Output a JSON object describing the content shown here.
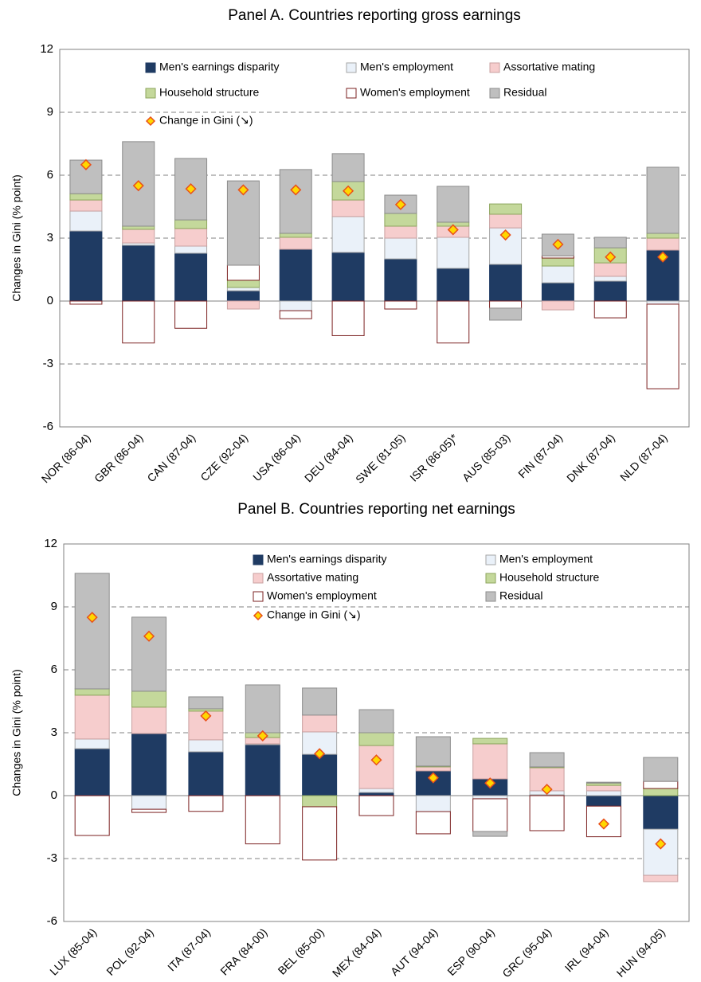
{
  "chart_data": [
    {
      "type": "bar",
      "stacked": true,
      "title": "Panel A. Countries reporting gross earnings",
      "y_label": "Changes in Gini (% point)",
      "categories": [
        "NOR (86-04)",
        "GBR (86-04)",
        "CAN (87-04)",
        "CZE (92-04)",
        "USA (86-04)",
        "DEU (84-04)",
        "SWE (81-05)",
        "ISR (86-05)*",
        "AUS (85-03)",
        "FIN (87-04)",
        "DNK (87-04)",
        "NLD (87-04)"
      ],
      "series": [
        {
          "name": "Men's earnings disparity",
          "color": "#1f3b63",
          "edgecolor": "#1f3b63",
          "values": [
            3.34,
            2.66,
            2.28,
            0.49,
            2.47,
            2.32,
            2.01,
            1.56,
            1.75,
            0.87,
            0.95,
            2.43
          ]
        },
        {
          "name": "Men's employment",
          "color": "#eaf1f9",
          "edgecolor": "#a6a6a6",
          "values": [
            0.95,
            0.11,
            0.34,
            0.16,
            -0.46,
            1.71,
            0.99,
            1.48,
            1.74,
            0.8,
            0.23,
            -0.15
          ]
        },
        {
          "name": "Assortative mating",
          "color": "#f6cdcd",
          "edgecolor": "#c9a0a0",
          "values": [
            0.53,
            0.65,
            0.84,
            -0.38,
            0.57,
            0.79,
            0.57,
            0.53,
            0.65,
            -0.42,
            0.64,
            0.57
          ]
        },
        {
          "name": "Household structure",
          "color": "#c4d89b",
          "edgecolor": "#8ea65e",
          "values": [
            0.3,
            0.15,
            0.41,
            0.34,
            0.19,
            0.88,
            0.61,
            0.19,
            0.49,
            0.38,
            0.72,
            0.23
          ]
        },
        {
          "name": "Women's employment",
          "color": "#ffffff",
          "edgecolor": "#7b2020",
          "values": [
            -0.15,
            -2.0,
            -1.3,
            0.72,
            -0.38,
            -1.65,
            -0.38,
            -2.0,
            -0.34,
            0.11,
            -0.8,
            -4.03
          ]
        },
        {
          "name": "Residual",
          "color": "#bfbfbf",
          "edgecolor": "#8c8c8c",
          "values": [
            1.6,
            4.03,
            2.93,
            4.02,
            3.04,
            1.33,
            0.87,
            1.71,
            -0.57,
            1.03,
            0.5,
            3.15
          ]
        }
      ],
      "marker": {
        "name": "Change in Gini (↘)",
        "color": "#ffd700",
        "edgecolor": "#e8501a",
        "values": [
          6.5,
          5.5,
          5.35,
          5.3,
          5.3,
          5.25,
          4.6,
          3.4,
          3.15,
          2.7,
          2.1,
          2.1
        ]
      },
      "ylim": [
        -6,
        12
      ],
      "yticks": [
        -6,
        -3,
        0,
        3,
        6,
        9,
        12
      ],
      "grid": true
    },
    {
      "type": "bar",
      "stacked": true,
      "title": "Panel B. Countries reporting net earnings",
      "y_label": "Changes in Gini (% point)",
      "categories": [
        "LUX (85-04)",
        "POL (92-04)",
        "ITA (87-04)",
        "FRA (84-00)",
        "BEL (85-00)",
        "MEX (84-04)",
        "AUT (94-04)",
        "ESP (90-04)",
        "GRC (95-04)",
        "IRL (94-04)",
        "HUN (94-05)"
      ],
      "series": [
        {
          "name": "Men's earnings disparity",
          "color": "#1f3b63",
          "edgecolor": "#1f3b63",
          "values": [
            2.24,
            2.96,
            2.09,
            2.43,
            1.97,
            0.15,
            1.18,
            0.8,
            0.04,
            -0.5,
            -1.6
          ]
        },
        {
          "name": "Men's employment",
          "color": "#eaf1f9",
          "edgecolor": "#a6a6a6",
          "values": [
            0.46,
            -0.65,
            0.57,
            0.04,
            1.07,
            0.19,
            -0.76,
            -0.15,
            0.19,
            0.23,
            -2.2
          ]
        },
        {
          "name": "Assortative mating",
          "color": "#f6cdcd",
          "edgecolor": "#c9a0a0",
          "values": [
            2.09,
            1.26,
            1.37,
            0.3,
            0.8,
            2.05,
            0.19,
            1.67,
            1.1,
            0.26,
            -0.3
          ]
        },
        {
          "name": "Household structure",
          "color": "#c4d89b",
          "edgecolor": "#8ea65e",
          "values": [
            0.3,
            0.76,
            0.11,
            0.23,
            -0.53,
            0.61,
            0.04,
            0.26,
            0.04,
            0.11,
            0.34
          ]
        },
        {
          "name": "Women's employment",
          "color": "#ffffff",
          "edgecolor": "#7b2020",
          "values": [
            -1.9,
            -0.15,
            -0.75,
            -2.3,
            -2.54,
            -0.95,
            -1.06,
            -1.56,
            -1.67,
            -1.46,
            0.34
          ]
        },
        {
          "name": "Residual",
          "color": "#bfbfbf",
          "edgecolor": "#8c8c8c",
          "values": [
            5.51,
            3.53,
            0.57,
            2.28,
            1.29,
            1.1,
            1.4,
            -0.23,
            0.68,
            0.04,
            1.14
          ]
        }
      ],
      "marker": {
        "name": "Change in Gini (↘)",
        "color": "#ffd700",
        "edgecolor": "#e8501a",
        "values": [
          8.5,
          7.6,
          3.8,
          2.85,
          2.0,
          1.7,
          0.85,
          0.6,
          0.3,
          -1.35,
          -2.3
        ]
      },
      "ylim": [
        -6,
        12
      ],
      "yticks": [
        -6,
        -3,
        0,
        3,
        6,
        9,
        12
      ],
      "grid": true
    }
  ]
}
